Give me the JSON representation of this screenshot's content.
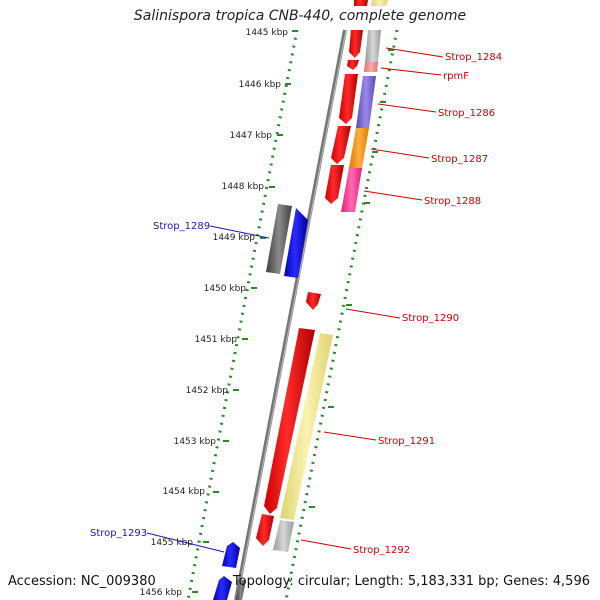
{
  "title": "Salinispora tropica CNB-440, complete genome",
  "footer": {
    "accession": "Accession: NC_009380",
    "summary": "Topology: circular; Length: 5,183,331 bp; Genes: 4,596"
  },
  "ticks": [
    {
      "label": "1445 kbp"
    },
    {
      "label": "1446 kbp"
    },
    {
      "label": "1447 kbp"
    },
    {
      "label": "1448 kbp"
    },
    {
      "label": "1449 kbp"
    },
    {
      "label": "1450 kbp"
    },
    {
      "label": "1451 kbp"
    },
    {
      "label": "1452 kbp"
    },
    {
      "label": "1453 kbp"
    },
    {
      "label": "1454 kbp"
    },
    {
      "label": "1455 kbp"
    },
    {
      "label": "1456 kbp"
    }
  ],
  "gene_labels": [
    {
      "label": "Strop_1284",
      "color": "#cc0000"
    },
    {
      "label": "rpmF",
      "color": "#cc0000"
    },
    {
      "label": "Strop_1286",
      "color": "#cc0000"
    },
    {
      "label": "Strop_1287",
      "color": "#cc0000"
    },
    {
      "label": "Strop_1288",
      "color": "#cc0000"
    },
    {
      "label": "Strop_1289",
      "color": "#1a1aaa"
    },
    {
      "label": "Strop_1290",
      "color": "#cc0000"
    },
    {
      "label": "Strop_1291",
      "color": "#cc0000"
    },
    {
      "label": "Strop_1292",
      "color": "#cc0000"
    },
    {
      "label": "Strop_1293",
      "color": "#1a1aaa"
    }
  ],
  "colors": {
    "forward_cds": "#ff0000",
    "reverse_cds": "#0000ff",
    "backbone": "#808080",
    "tick": "#2a8a2a",
    "cog_grey": "#b4b4b4",
    "cog_salmon": "#f08080",
    "cog_purple": "#7f6fd0",
    "cog_orange": "#ff8c00",
    "cog_pink": "#ff3399",
    "cog_yellow": "#f0e68c",
    "cog_darkgrey": "#606060"
  }
}
